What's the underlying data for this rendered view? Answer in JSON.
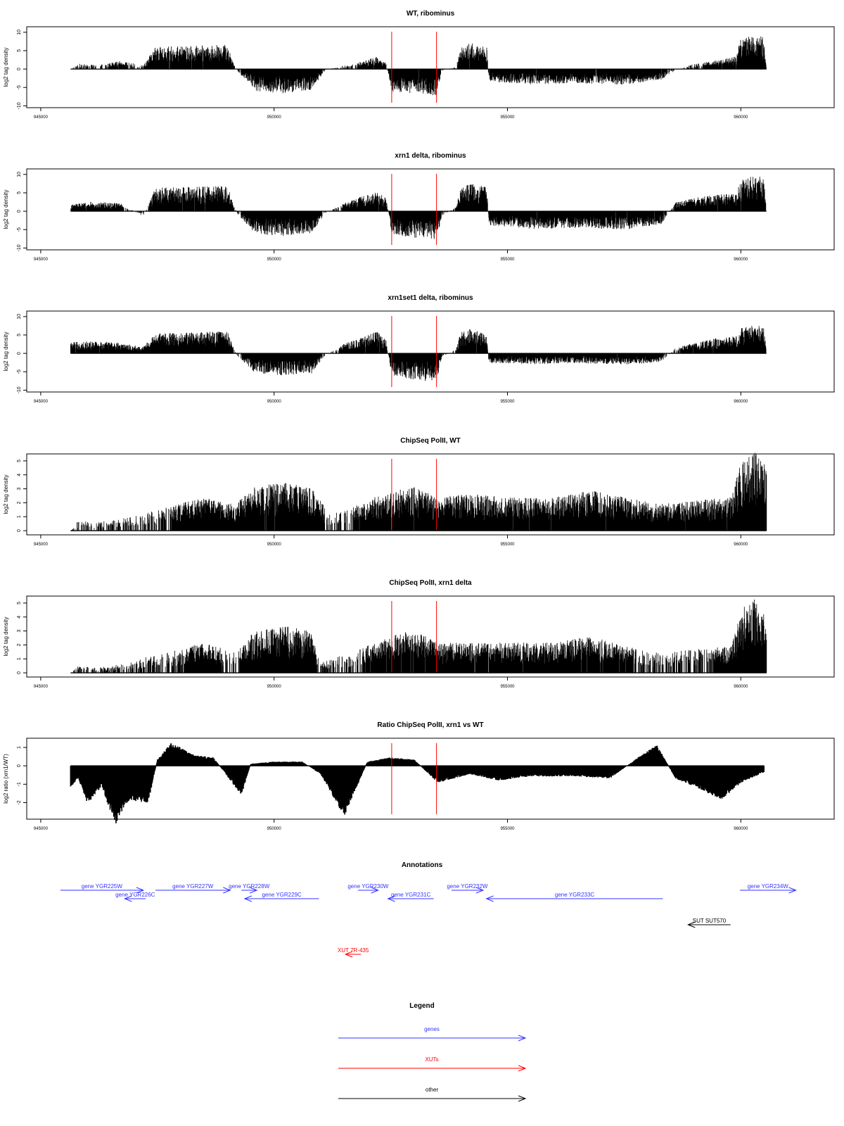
{
  "colors": {
    "gene": "#3333ff",
    "xut": "#ff0000",
    "other": "#000000",
    "marker": "#ff0000",
    "data": "#000000"
  },
  "chart_data": [
    {
      "type": "bar",
      "title": "WT, ribominus",
      "ylabel": "log2 tag density",
      "xlim": [
        944700,
        962000
      ],
      "ylim": [
        -10.5,
        11.5
      ],
      "yticks": [
        -10,
        -5,
        0,
        5,
        10
      ],
      "ytick_labels": [
        "-10",
        "-5",
        "0",
        "5",
        "10"
      ],
      "xticks": [
        945000,
        950000,
        955000,
        960000
      ],
      "xtick_labels": [
        "945000",
        "950000",
        "955000",
        "960000"
      ],
      "red_lines": [
        952520,
        953480
      ],
      "profile": [
        [
          945640,
          0
        ],
        [
          945830,
          1.2
        ],
        [
          946200,
          0.9
        ],
        [
          946700,
          1.8
        ],
        [
          947200,
          0.9
        ],
        [
          947460,
          5
        ],
        [
          948300,
          5.3
        ],
        [
          949000,
          5.6
        ],
        [
          949200,
          -0.3
        ],
        [
          949600,
          -5
        ],
        [
          950200,
          -5.5
        ],
        [
          950800,
          -4.8
        ],
        [
          951100,
          -0.2
        ],
        [
          951500,
          0.8
        ],
        [
          951900,
          1.8
        ],
        [
          952200,
          2.8
        ],
        [
          952400,
          1.5
        ],
        [
          952520,
          -5.2
        ],
        [
          953000,
          -5.5
        ],
        [
          953480,
          -6
        ],
        [
          953600,
          -0.3
        ],
        [
          953900,
          0.5
        ],
        [
          954000,
          5
        ],
        [
          954200,
          6
        ],
        [
          954560,
          5
        ],
        [
          954600,
          -2.8
        ],
        [
          955500,
          -3.5
        ],
        [
          956500,
          -3.2
        ],
        [
          957500,
          -3.6
        ],
        [
          958300,
          -2.4
        ],
        [
          958600,
          -0.3
        ],
        [
          959000,
          1.2
        ],
        [
          959500,
          2
        ],
        [
          959900,
          3
        ],
        [
          960000,
          7
        ],
        [
          960300,
          7.8
        ],
        [
          960500,
          7.2
        ],
        [
          960550,
          0
        ]
      ],
      "unit": "bp"
    },
    {
      "type": "bar",
      "title": "xrn1 delta, ribominus",
      "ylabel": "log2 tag density",
      "xlim": [
        944700,
        962000
      ],
      "ylim": [
        -10.5,
        11.5
      ],
      "yticks": [
        -10,
        -5,
        0,
        5,
        10
      ],
      "ytick_labels": [
        "-10",
        "-5",
        "0",
        "5",
        "10"
      ],
      "xticks": [
        945000,
        950000,
        955000,
        960000
      ],
      "xtick_labels": [
        "945000",
        "950000",
        "955000",
        "960000"
      ],
      "red_lines": [
        952520,
        953480
      ],
      "profile": [
        [
          945640,
          1.5
        ],
        [
          946100,
          2.2
        ],
        [
          946700,
          1.8
        ],
        [
          947200,
          -1.2
        ],
        [
          947460,
          5.4
        ],
        [
          948300,
          5.6
        ],
        [
          949000,
          5.7
        ],
        [
          949200,
          -0.5
        ],
        [
          949600,
          -5.2
        ],
        [
          950200,
          -5.6
        ],
        [
          950800,
          -5
        ],
        [
          951100,
          -0.4
        ],
        [
          951500,
          1.8
        ],
        [
          951900,
          3.5
        ],
        [
          952200,
          4.5
        ],
        [
          952400,
          3
        ],
        [
          952520,
          -5.5
        ],
        [
          953000,
          -6
        ],
        [
          953480,
          -6.5
        ],
        [
          953600,
          -1
        ],
        [
          953900,
          1
        ],
        [
          954000,
          5.2
        ],
        [
          954200,
          6.5
        ],
        [
          954560,
          5.5
        ],
        [
          954600,
          -3.2
        ],
        [
          955500,
          -4
        ],
        [
          956500,
          -3.8
        ],
        [
          957500,
          -4.2
        ],
        [
          958300,
          -3
        ],
        [
          958600,
          2
        ],
        [
          959000,
          3
        ],
        [
          959500,
          3.8
        ],
        [
          959900,
          4
        ],
        [
          960000,
          7.2
        ],
        [
          960300,
          8.2
        ],
        [
          960500,
          7.5
        ],
        [
          960550,
          0
        ]
      ],
      "unit": "bp"
    },
    {
      "type": "bar",
      "title": "xrn1set1 delta, ribominus",
      "ylabel": "log2 tag density",
      "xlim": [
        944700,
        962000
      ],
      "ylim": [
        -10.5,
        11.5
      ],
      "yticks": [
        -10,
        -5,
        0,
        5,
        10
      ],
      "ytick_labels": [
        "-10",
        "-5",
        "0",
        "5",
        "10"
      ],
      "xticks": [
        945000,
        950000,
        955000,
        960000
      ],
      "xtick_labels": [
        "945000",
        "950000",
        "955000",
        "960000"
      ],
      "red_lines": [
        952520,
        953480
      ],
      "profile": [
        [
          945640,
          2.5
        ],
        [
          946100,
          2.8
        ],
        [
          946700,
          2.4
        ],
        [
          947200,
          1.5
        ],
        [
          947460,
          4.5
        ],
        [
          948300,
          4.8
        ],
        [
          949000,
          5
        ],
        [
          949200,
          -0.5
        ],
        [
          949600,
          -4.5
        ],
        [
          950200,
          -5
        ],
        [
          950800,
          -4.6
        ],
        [
          951100,
          -0.4
        ],
        [
          951500,
          2.2
        ],
        [
          951900,
          3.8
        ],
        [
          952200,
          5
        ],
        [
          952400,
          3
        ],
        [
          952520,
          -5
        ],
        [
          953000,
          -6
        ],
        [
          953480,
          -6.5
        ],
        [
          953600,
          -0.8
        ],
        [
          953900,
          1
        ],
        [
          954000,
          4.8
        ],
        [
          954200,
          5.5
        ],
        [
          954560,
          4.5
        ],
        [
          954600,
          -2.2
        ],
        [
          955500,
          -2.5
        ],
        [
          956500,
          -2.2
        ],
        [
          957500,
          -2.6
        ],
        [
          958300,
          -2
        ],
        [
          958600,
          1.2
        ],
        [
          959000,
          2.4
        ],
        [
          959500,
          3.5
        ],
        [
          959900,
          4
        ],
        [
          960000,
          5.8
        ],
        [
          960300,
          6.5
        ],
        [
          960500,
          6
        ],
        [
          960550,
          0
        ]
      ],
      "unit": "bp"
    },
    {
      "type": "bar",
      "title": "ChipSeq PolII, WT",
      "ylabel": "log2 tag density",
      "xlim": [
        944700,
        962000
      ],
      "ylim": [
        -0.3,
        5.5
      ],
      "yticks": [
        0,
        1,
        2,
        3,
        4,
        5
      ],
      "ytick_labels": [
        "0",
        "1",
        "2",
        "3",
        "4",
        "5"
      ],
      "xticks": [
        945000,
        950000,
        955000,
        960000
      ],
      "xtick_labels": [
        "945000",
        "950000",
        "955000",
        "960000"
      ],
      "red_lines": [
        952520,
        953480
      ],
      "profile": [
        [
          945640,
          0
        ],
        [
          945800,
          0.6
        ],
        [
          946200,
          0.5
        ],
        [
          946700,
          0.7
        ],
        [
          947200,
          1
        ],
        [
          947800,
          1.5
        ],
        [
          948500,
          2
        ],
        [
          949200,
          1.6
        ],
        [
          949500,
          2.6
        ],
        [
          950200,
          2.9
        ],
        [
          950800,
          2.6
        ],
        [
          951200,
          1
        ],
        [
          951800,
          1.6
        ],
        [
          952500,
          2.4
        ],
        [
          953000,
          2.6
        ],
        [
          953500,
          2
        ],
        [
          954200,
          2.2
        ],
        [
          955000,
          2
        ],
        [
          956000,
          2
        ],
        [
          956800,
          2.4
        ],
        [
          957500,
          2
        ],
        [
          958300,
          1.6
        ],
        [
          959000,
          1.8
        ],
        [
          959800,
          2
        ],
        [
          960000,
          4.2
        ],
        [
          960300,
          4.8
        ],
        [
          960550,
          4.2
        ]
      ],
      "unit": "bp"
    },
    {
      "type": "bar",
      "title": "ChipSeq PolII, xrn1 delta",
      "ylabel": "log2 tag density",
      "xlim": [
        944700,
        962000
      ],
      "ylim": [
        -0.3,
        5.5
      ],
      "yticks": [
        0,
        1,
        2,
        3,
        4,
        5
      ],
      "ytick_labels": [
        "0",
        "1",
        "2",
        "3",
        "4",
        "5"
      ],
      "xticks": [
        945000,
        950000,
        955000,
        960000
      ],
      "xtick_labels": [
        "945000",
        "950000",
        "955000",
        "960000"
      ],
      "red_lines": [
        952520,
        953480
      ],
      "profile": [
        [
          945640,
          0
        ],
        [
          945800,
          0.4
        ],
        [
          946200,
          0.3
        ],
        [
          946700,
          0.5
        ],
        [
          947200,
          0.9
        ],
        [
          947800,
          1.3
        ],
        [
          948500,
          1.8
        ],
        [
          949200,
          1.2
        ],
        [
          949500,
          2.4
        ],
        [
          950200,
          2.8
        ],
        [
          950800,
          2.5
        ],
        [
          951000,
          0.6
        ],
        [
          951800,
          1.4
        ],
        [
          952500,
          2.2
        ],
        [
          953000,
          2.6
        ],
        [
          953500,
          1.8
        ],
        [
          954200,
          1.8
        ],
        [
          955000,
          1.8
        ],
        [
          956000,
          1.8
        ],
        [
          956800,
          2.2
        ],
        [
          957500,
          1.6
        ],
        [
          958300,
          1.2
        ],
        [
          959000,
          1.4
        ],
        [
          959800,
          1.6
        ],
        [
          960000,
          3.8
        ],
        [
          960300,
          4.4
        ],
        [
          960550,
          3.8
        ]
      ],
      "unit": "bp"
    },
    {
      "type": "area",
      "title": "Ratio ChipSeq PolII, xrn1 vs WT",
      "ylabel": "log2 ratio (xrn1/WT)",
      "xlim": [
        944700,
        962000
      ],
      "ylim": [
        -2.9,
        1.5
      ],
      "yticks": [
        -2,
        -1,
        0,
        1
      ],
      "ytick_labels": [
        "-2",
        "-1",
        "0",
        "1"
      ],
      "xticks": [
        945000,
        950000,
        955000,
        960000
      ],
      "xtick_labels": [
        "945000",
        "950000",
        "955000",
        "960000"
      ],
      "red_lines": [
        952520,
        953480
      ],
      "profile": [
        [
          945640,
          -1
        ],
        [
          945800,
          -0.6
        ],
        [
          946000,
          -1.8
        ],
        [
          946300,
          -1
        ],
        [
          946600,
          -2.8
        ],
        [
          946900,
          -1.6
        ],
        [
          947300,
          -1.8
        ],
        [
          947500,
          0.3
        ],
        [
          947800,
          1.1
        ],
        [
          948300,
          0.5
        ],
        [
          948700,
          0.4
        ],
        [
          949000,
          -0.5
        ],
        [
          949300,
          -1.4
        ],
        [
          949500,
          0.1
        ],
        [
          950000,
          0.2
        ],
        [
          950600,
          0.2
        ],
        [
          951000,
          -0.4
        ],
        [
          951500,
          -2.4
        ],
        [
          952000,
          0.2
        ],
        [
          952500,
          0.4
        ],
        [
          953000,
          0.3
        ],
        [
          953500,
          -0.8
        ],
        [
          954200,
          -0.4
        ],
        [
          954800,
          -0.7
        ],
        [
          955500,
          -0.5
        ],
        [
          956500,
          -0.5
        ],
        [
          957200,
          -0.6
        ],
        [
          957800,
          0.4
        ],
        [
          958200,
          1.0
        ],
        [
          958600,
          -0.6
        ],
        [
          959200,
          -1.2
        ],
        [
          959600,
          -1.6
        ],
        [
          960000,
          -0.8
        ],
        [
          960500,
          -0.3
        ]
      ],
      "unit": "bp"
    }
  ],
  "annotations": {
    "title": "Annotations",
    "features": [
      {
        "label": "gene YGR225W",
        "type": "gene",
        "strand": "+",
        "start": 945420,
        "end": 947200
      },
      {
        "label": "gene YGR226C",
        "type": "gene",
        "strand": "-",
        "start": 946800,
        "end": 947250
      },
      {
        "label": "gene YGR227W",
        "type": "gene",
        "strand": "+",
        "start": 947460,
        "end": 949060
      },
      {
        "label": "gene YGR228W",
        "type": "gene",
        "strand": "+",
        "start": 949300,
        "end": 949630
      },
      {
        "label": "gene YGR229C",
        "type": "gene",
        "strand": "-",
        "start": 949370,
        "end": 950960
      },
      {
        "label": "gene YGR230W",
        "type": "gene",
        "strand": "+",
        "start": 951800,
        "end": 952230
      },
      {
        "label": "gene YGR231C",
        "type": "gene",
        "strand": "-",
        "start": 952440,
        "end": 953420
      },
      {
        "label": "gene YGR232W",
        "type": "gene",
        "strand": "+",
        "start": 953800,
        "end": 954480
      },
      {
        "label": "gene YGR233C",
        "type": "gene",
        "strand": "-",
        "start": 954550,
        "end": 958330
      },
      {
        "label": "gene YGR234W",
        "type": "gene",
        "strand": "+",
        "start": 959980,
        "end": 961180
      },
      {
        "label": "SUT SUT570",
        "type": "other",
        "strand": "-",
        "start": 958870,
        "end": 959780
      },
      {
        "label": "XUT 7R-435",
        "type": "xut",
        "strand": "-",
        "start": 951530,
        "end": 951860
      }
    ]
  },
  "legend": {
    "title": "Legend",
    "items": [
      {
        "label": "genes",
        "type": "gene"
      },
      {
        "label": "XUTs",
        "type": "xut"
      },
      {
        "label": "other",
        "type": "other"
      }
    ]
  }
}
